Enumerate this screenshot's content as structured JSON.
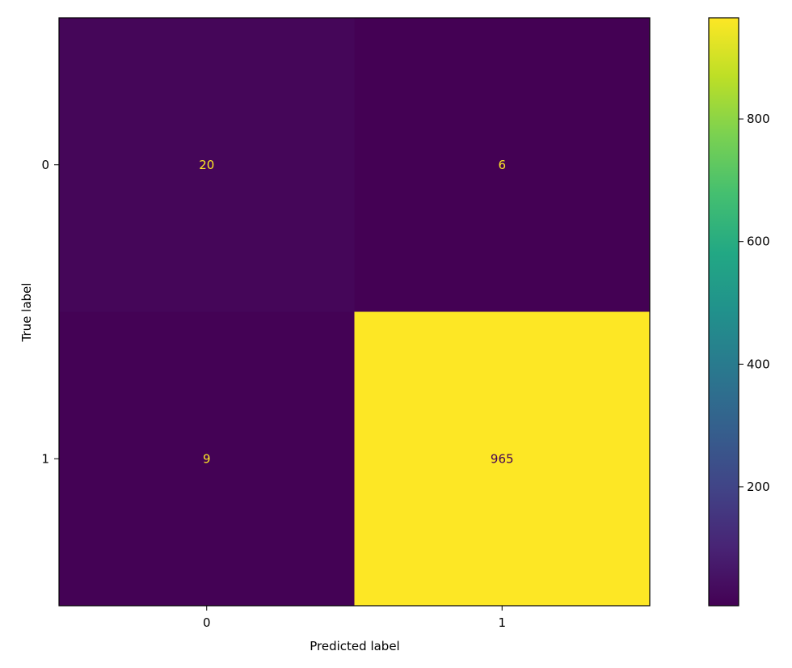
{
  "chart_data": {
    "type": "heatmap",
    "xlabel": "Predicted label",
    "ylabel": "True label",
    "x_categories": [
      "0",
      "1"
    ],
    "y_categories": [
      "0",
      "1"
    ],
    "values": [
      [
        20,
        6
      ],
      [
        9,
        965
      ]
    ],
    "colormap": "viridis",
    "colorbar": {
      "min": 6,
      "max": 965,
      "ticks": [
        "200",
        "400",
        "600",
        "800"
      ]
    },
    "colors": {
      "low_text": "#fde725",
      "high_text": "#440154"
    }
  }
}
